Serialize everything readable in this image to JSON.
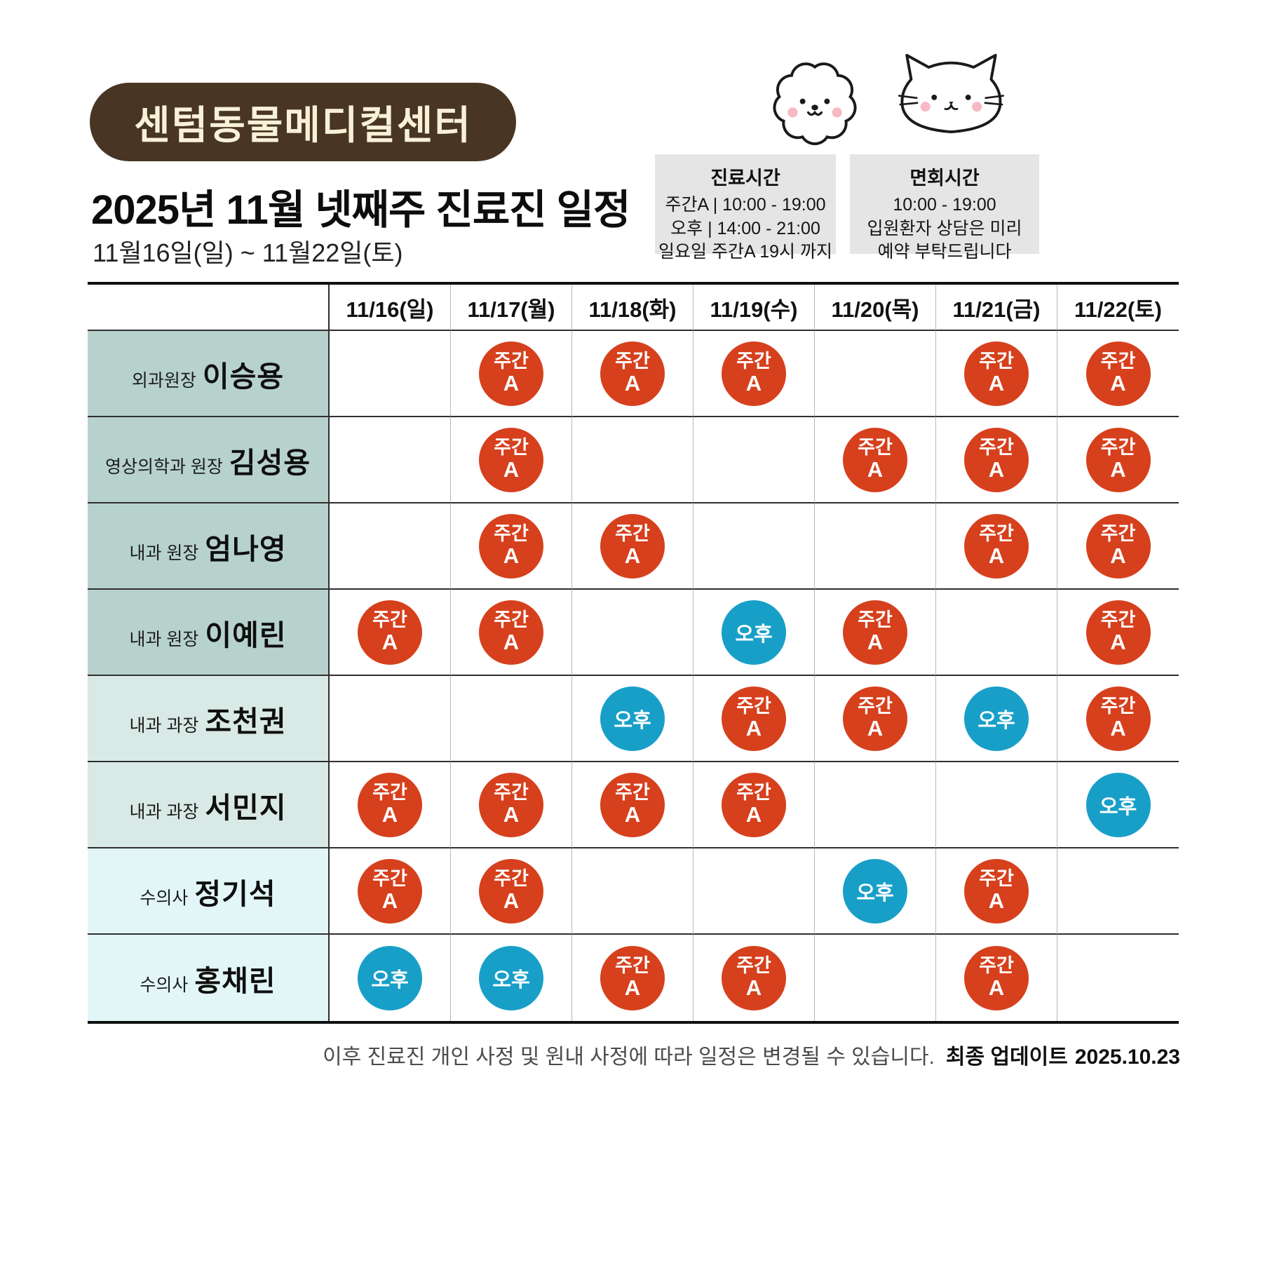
{
  "header": {
    "clinic_name": "센텀동물메디컬센터",
    "title": "2025년 11월 넷째주 진료진 일정",
    "subtitle": "11월16일(일) ~ 11월22일(토)",
    "clinic_hours": {
      "title": "진료시간",
      "lines": [
        "주간A | 10:00 - 19:00",
        "오후 | 14:00 - 21:00",
        "일요일 주간A 19시 까지"
      ]
    },
    "visit_hours": {
      "title": "면회시간",
      "lines": [
        "10:00 - 19:00",
        "입원환자 상담은 미리",
        "예약 부탁드립니다"
      ]
    },
    "icons": {
      "dog": "dog-face-doodle",
      "cat": "cat-face-doodle"
    }
  },
  "table": {
    "day_headers": [
      "11/16(일)",
      "11/17(월)",
      "11/18(화)",
      "11/19(수)",
      "11/20(목)",
      "11/21(금)",
      "11/22(토)"
    ],
    "badge_labels": {
      "dayA_top": "주간",
      "dayA_bottom": "A",
      "afternoon": "오후"
    },
    "rows": [
      {
        "role": "외과원장",
        "name": "이승용",
        "group": "senior",
        "schedule": [
          null,
          "dayA",
          "dayA",
          "dayA",
          null,
          "dayA",
          "dayA"
        ]
      },
      {
        "role": "영상의학과 원장",
        "name": "김성용",
        "group": "senior",
        "schedule": [
          null,
          "dayA",
          null,
          null,
          "dayA",
          "dayA",
          "dayA"
        ]
      },
      {
        "role": "내과 원장",
        "name": "엄나영",
        "group": "senior",
        "schedule": [
          null,
          "dayA",
          "dayA",
          null,
          null,
          "dayA",
          "dayA"
        ]
      },
      {
        "role": "내과 원장",
        "name": "이예린",
        "group": "senior",
        "schedule": [
          "dayA",
          "dayA",
          null,
          "afternoon",
          "dayA",
          null,
          "dayA"
        ]
      },
      {
        "role": "내과 과장",
        "name": "조천권",
        "group": "mid",
        "schedule": [
          null,
          null,
          "afternoon",
          "dayA",
          "dayA",
          "afternoon",
          "dayA"
        ]
      },
      {
        "role": "내과 과장",
        "name": "서민지",
        "group": "mid",
        "schedule": [
          "dayA",
          "dayA",
          "dayA",
          "dayA",
          null,
          null,
          "afternoon"
        ]
      },
      {
        "role": "수의사",
        "name": "정기석",
        "group": "junior",
        "schedule": [
          "dayA",
          "dayA",
          null,
          null,
          "afternoon",
          "dayA",
          null
        ]
      },
      {
        "role": "수의사",
        "name": "홍채린",
        "group": "junior",
        "schedule": [
          "afternoon",
          "afternoon",
          "dayA",
          "dayA",
          null,
          "dayA",
          null
        ]
      }
    ]
  },
  "footer": {
    "note": "이후 진료진 개인 사정 및 원내 사정에 따라 일정은 변경될 수 있습니다.",
    "update_label": "최종 업데이트",
    "update_date": "2025.10.23"
  },
  "colors": {
    "dayA": "#d6401d",
    "afternoon": "#189fc8",
    "senior_bg": "#b7d2cd",
    "mid_bg": "#d9e9e5",
    "junior_bg": "#e3f6f7",
    "pill_bg": "#483523",
    "pill_text": "#f8f1d8",
    "infobox_bg": "#e5e5e5"
  }
}
